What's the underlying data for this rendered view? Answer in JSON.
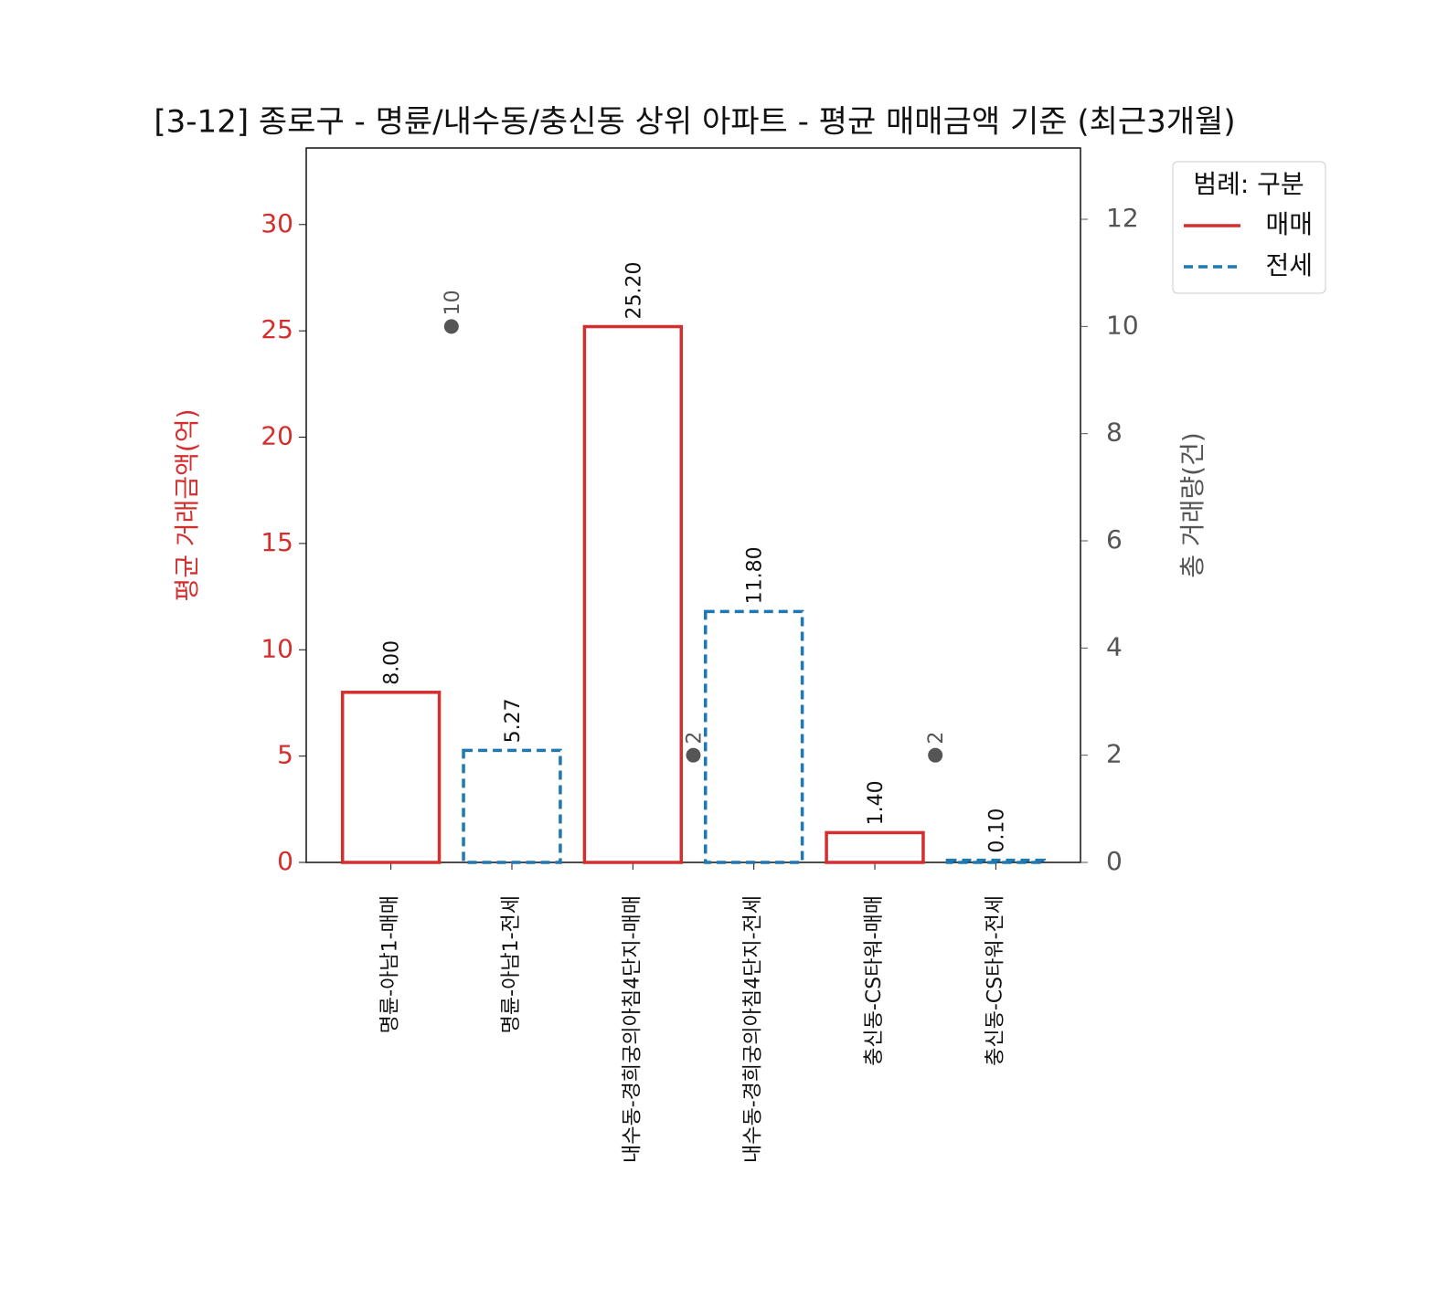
{
  "chart_data": {
    "type": "bar",
    "title": "[3-12] 종로구 - 명륜/내수동/충신동 상위 아파트 - 평균 매매금액 기준 (최근3개월)",
    "ylabel": "평균 거래금액(억)",
    "y2label": "총 거래량(건)",
    "legend_title": "범례: 구분",
    "legend": "upper right outside",
    "categories": [
      "명륜-아남1-매매",
      "명륜-아남1-전세",
      "내수동-경희궁의아침4단지-매매",
      "내수동-경희궁의아침4단지-전세",
      "충신동-CS타워-매매",
      "충신동-CS타워-전세"
    ],
    "series": [
      {
        "name": "매매",
        "color": "#d32f2f",
        "dashed": false,
        "values": [
          8.0,
          null,
          25.2,
          null,
          1.4,
          null
        ],
        "value_labels": [
          "8.00",
          null,
          "25.20",
          null,
          "1.40",
          null
        ]
      },
      {
        "name": "전세",
        "color": "#1f77b4",
        "dashed": true,
        "values": [
          null,
          5.27,
          null,
          11.8,
          null,
          0.1
        ],
        "value_labels": [
          null,
          "5.27",
          null,
          "11.80",
          null,
          "0.10"
        ]
      }
    ],
    "counts": {
      "axis": "y2",
      "color": "#555555",
      "values": [
        10,
        2,
        2
      ]
    },
    "ylim": [
      0,
      33.6
    ],
    "yticks": [
      0,
      5,
      10,
      15,
      20,
      25,
      30
    ],
    "y2lim": [
      0,
      13.33
    ],
    "y2ticks": [
      0,
      2,
      4,
      6,
      8,
      10,
      12
    ],
    "ycolor": "#d32f2f",
    "y2color": "#555555"
  }
}
